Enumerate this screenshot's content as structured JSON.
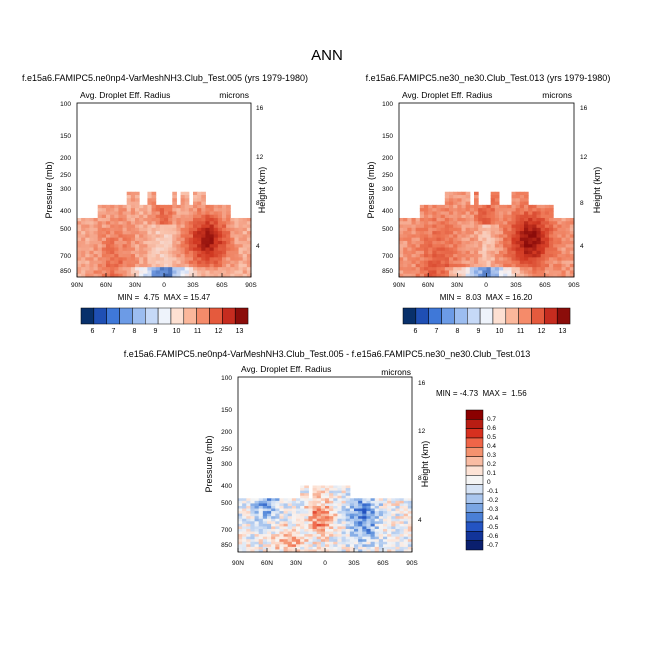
{
  "figure": {
    "title": "ANN"
  },
  "chart_data": [
    {
      "id": "p1",
      "type": "heatmap",
      "title": "f.e15a6.FAMIPC5.ne0np4-VarMeshNH3.Club_Test.005 (yrs 1979-1980)",
      "left_label": "Avg. Droplet Eff. Radius",
      "right_label": "microns",
      "ylabel": "Pressure (mb)",
      "y2label": "Height (km)",
      "xticks": [
        "90N",
        "60N",
        "30N",
        "0",
        "30S",
        "60S",
        "90S"
      ],
      "yticks": [
        "100",
        "150",
        "200",
        "250",
        "300",
        "400",
        "500",
        "700",
        "850"
      ],
      "y2ticks": [
        "16",
        "12",
        "8",
        "4"
      ],
      "stats": "MIN =  4.75  MAX = 15.47",
      "colorbar": [
        "6",
        "7",
        "8",
        "9",
        "10",
        "11",
        "12",
        "13"
      ]
    },
    {
      "id": "p2",
      "type": "heatmap",
      "title": "f.e15a6.FAMIPC5.ne30_ne30.Club_Test.013 (yrs 1979-1980)",
      "left_label": "Avg. Droplet Eff. Radius",
      "right_label": "microns",
      "ylabel": "Pressure (mb)",
      "y2label": "Height (km)",
      "xticks": [
        "90N",
        "60N",
        "30N",
        "0",
        "30S",
        "60S",
        "90S"
      ],
      "yticks": [
        "100",
        "150",
        "200",
        "250",
        "300",
        "400",
        "500",
        "700",
        "850"
      ],
      "y2ticks": [
        "16",
        "12",
        "8",
        "4"
      ],
      "stats": "MIN =  8.03  MAX = 16.20",
      "colorbar": [
        "6",
        "7",
        "8",
        "9",
        "10",
        "11",
        "12",
        "13"
      ]
    },
    {
      "id": "p3",
      "type": "heatmap",
      "title": "f.e15a6.FAMIPC5.ne0np4-VarMeshNH3.Club_Test.005 - f.e15a6.FAMIPC5.ne30_ne30.Club_Test.013",
      "left_label": "Avg. Droplet Eff. Radius",
      "right_label": "microns",
      "ylabel": "Pressure (mb)",
      "y2label": "Height (km)",
      "xticks": [
        "90N",
        "60N",
        "30N",
        "0",
        "30S",
        "60S",
        "90S"
      ],
      "yticks": [
        "100",
        "150",
        "200",
        "250",
        "300",
        "400",
        "500",
        "700",
        "850"
      ],
      "y2ticks": [
        "16",
        "12",
        "8",
        "4"
      ],
      "stats": "MIN = -4.73  MAX =  1.56",
      "colorbar": [
        "0.7",
        "0.6",
        "0.5",
        "0.4",
        "0.3",
        "0.2",
        "0.1",
        "0",
        "-0.1",
        "-0.2",
        "-0.3",
        "-0.4",
        "-0.5",
        "-0.6",
        "-0.7"
      ]
    }
  ],
  "colors": {
    "abs_scale": [
      "#08306b",
      "#1f4fb4",
      "#3f78d8",
      "#6c9be6",
      "#9cbdf0",
      "#c6d9f7",
      "#eef3fb",
      "#fde0d2",
      "#fbb79b",
      "#f58b6a",
      "#e55a3d",
      "#c62c1f",
      "#8b0d0a"
    ],
    "diff_scale": [
      "#8b0000",
      "#b81d13",
      "#d7301f",
      "#ef6548",
      "#f4926f",
      "#f9bca3",
      "#fde3d6",
      "#f5f5f5",
      "#d6e3f5",
      "#aac6ee",
      "#7aa5e3",
      "#4a7fd6",
      "#2454c2",
      "#123499",
      "#0a1f6e"
    ]
  }
}
